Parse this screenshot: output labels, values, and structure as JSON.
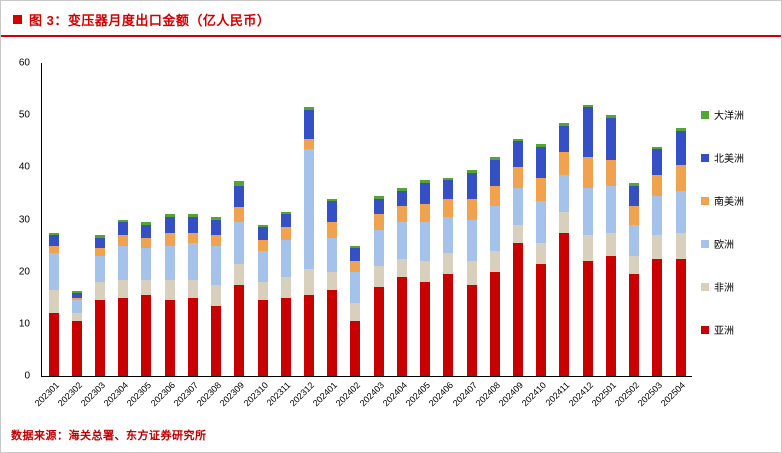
{
  "header": {
    "title": "图 3：变压器月度出口金额（亿人民币）"
  },
  "footer": {
    "source": "数据来源：海关总署、东方证券研究所"
  },
  "theme": {
    "accent_red": "#d40000"
  },
  "chart_data": {
    "type": "bar",
    "stacked": true,
    "title": "变压器月度出口金额（亿人民币）",
    "ylim": [
      0,
      60
    ],
    "yticks": [
      0,
      10,
      20,
      30,
      40,
      50,
      60
    ],
    "grid": false,
    "legend_position": "right",
    "categories": [
      "202301",
      "202302",
      "202303",
      "202304",
      "202305",
      "202306",
      "202307",
      "202308",
      "202309",
      "202310",
      "202311",
      "202312",
      "202401",
      "202402",
      "202403",
      "202404",
      "202405",
      "202406",
      "202407",
      "202408",
      "202409",
      "202410",
      "202411",
      "202412",
      "202501",
      "202502",
      "202503",
      "202504"
    ],
    "series": [
      {
        "name": "亚洲",
        "color": "#c90000",
        "values": [
          12.0,
          10.5,
          14.5,
          15.0,
          15.5,
          14.5,
          15.0,
          13.5,
          17.5,
          14.5,
          15.0,
          15.5,
          16.5,
          10.5,
          17.0,
          19.0,
          18.0,
          19.5,
          17.5,
          20.0,
          25.5,
          21.5,
          27.5,
          22.0,
          23.0,
          19.5,
          22.5,
          22.5
        ]
      },
      {
        "name": "非洲",
        "color": "#d8d0bc",
        "values": [
          4.5,
          1.5,
          3.5,
          3.5,
          3.0,
          4.0,
          3.5,
          4.0,
          4.0,
          3.5,
          4.0,
          5.0,
          3.5,
          3.5,
          4.0,
          3.5,
          4.0,
          4.0,
          4.5,
          4.0,
          3.5,
          4.0,
          4.0,
          5.0,
          4.5,
          3.5,
          4.5,
          5.0
        ]
      },
      {
        "name": "欧洲",
        "color": "#a4c2ea",
        "values": [
          7.0,
          2.5,
          5.0,
          6.5,
          6.0,
          6.5,
          7.0,
          7.5,
          8.0,
          6.0,
          7.0,
          23.0,
          6.5,
          6.0,
          7.0,
          7.0,
          7.5,
          7.0,
          8.0,
          8.5,
          7.0,
          8.0,
          7.0,
          9.0,
          9.0,
          6.0,
          7.5,
          8.0
        ]
      },
      {
        "name": "南美洲",
        "color": "#f0a24f",
        "values": [
          1.5,
          0.5,
          1.5,
          2.0,
          2.0,
          2.5,
          2.0,
          2.0,
          3.0,
          2.0,
          2.5,
          2.0,
          3.0,
          2.0,
          3.0,
          3.0,
          3.5,
          3.5,
          4.0,
          4.0,
          4.0,
          4.5,
          4.5,
          6.0,
          5.0,
          3.5,
          4.0,
          5.0
        ]
      },
      {
        "name": "北美洲",
        "color": "#3450c4",
        "values": [
          2.0,
          1.0,
          2.0,
          2.5,
          2.5,
          3.0,
          3.0,
          3.0,
          4.0,
          2.5,
          2.5,
          5.5,
          4.0,
          2.5,
          3.0,
          3.0,
          4.0,
          3.5,
          5.0,
          5.0,
          5.0,
          6.0,
          5.0,
          9.5,
          8.0,
          4.0,
          5.0,
          6.5
        ]
      },
      {
        "name": "大洋洲",
        "color": "#55a532",
        "values": [
          0.5,
          0.3,
          0.5,
          0.5,
          0.5,
          0.5,
          0.5,
          0.5,
          0.8,
          0.5,
          0.5,
          0.5,
          0.5,
          0.5,
          0.5,
          0.5,
          0.5,
          0.5,
          0.5,
          0.5,
          0.5,
          0.5,
          0.5,
          0.5,
          0.5,
          0.5,
          0.5,
          0.5
        ]
      }
    ]
  }
}
